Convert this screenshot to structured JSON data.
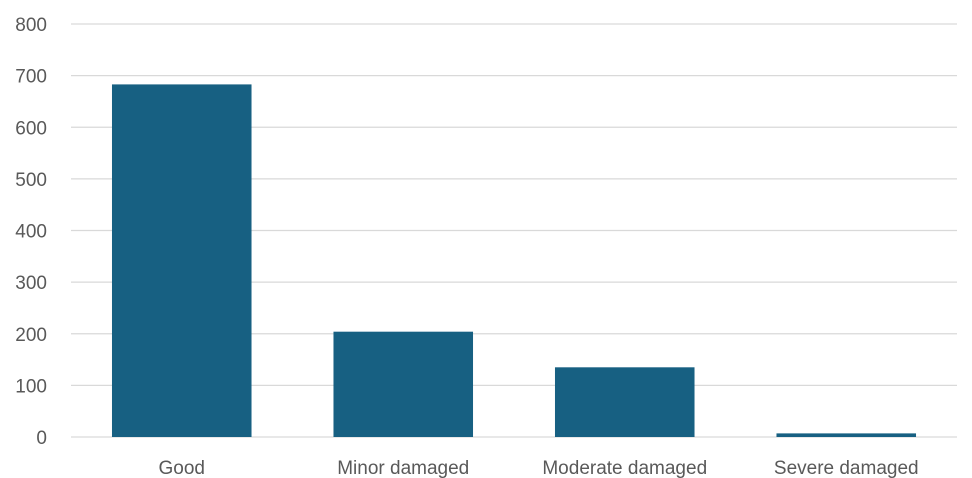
{
  "chart_data": {
    "type": "bar",
    "title": "",
    "xlabel": "",
    "ylabel": "",
    "categories": [
      "Good",
      "Minor damaged",
      "Moderate damaged",
      "Severe damaged"
    ],
    "values": [
      683,
      204,
      135,
      7
    ],
    "ylim": [
      0,
      800
    ],
    "yticks": [
      "0",
      "100",
      "200",
      "300",
      "400",
      "500",
      "600",
      "700",
      "800"
    ],
    "grid": true,
    "legend": "none",
    "bar_color": "#176082",
    "gridline_color": "#d9d9d9",
    "text_color": "#595959"
  }
}
